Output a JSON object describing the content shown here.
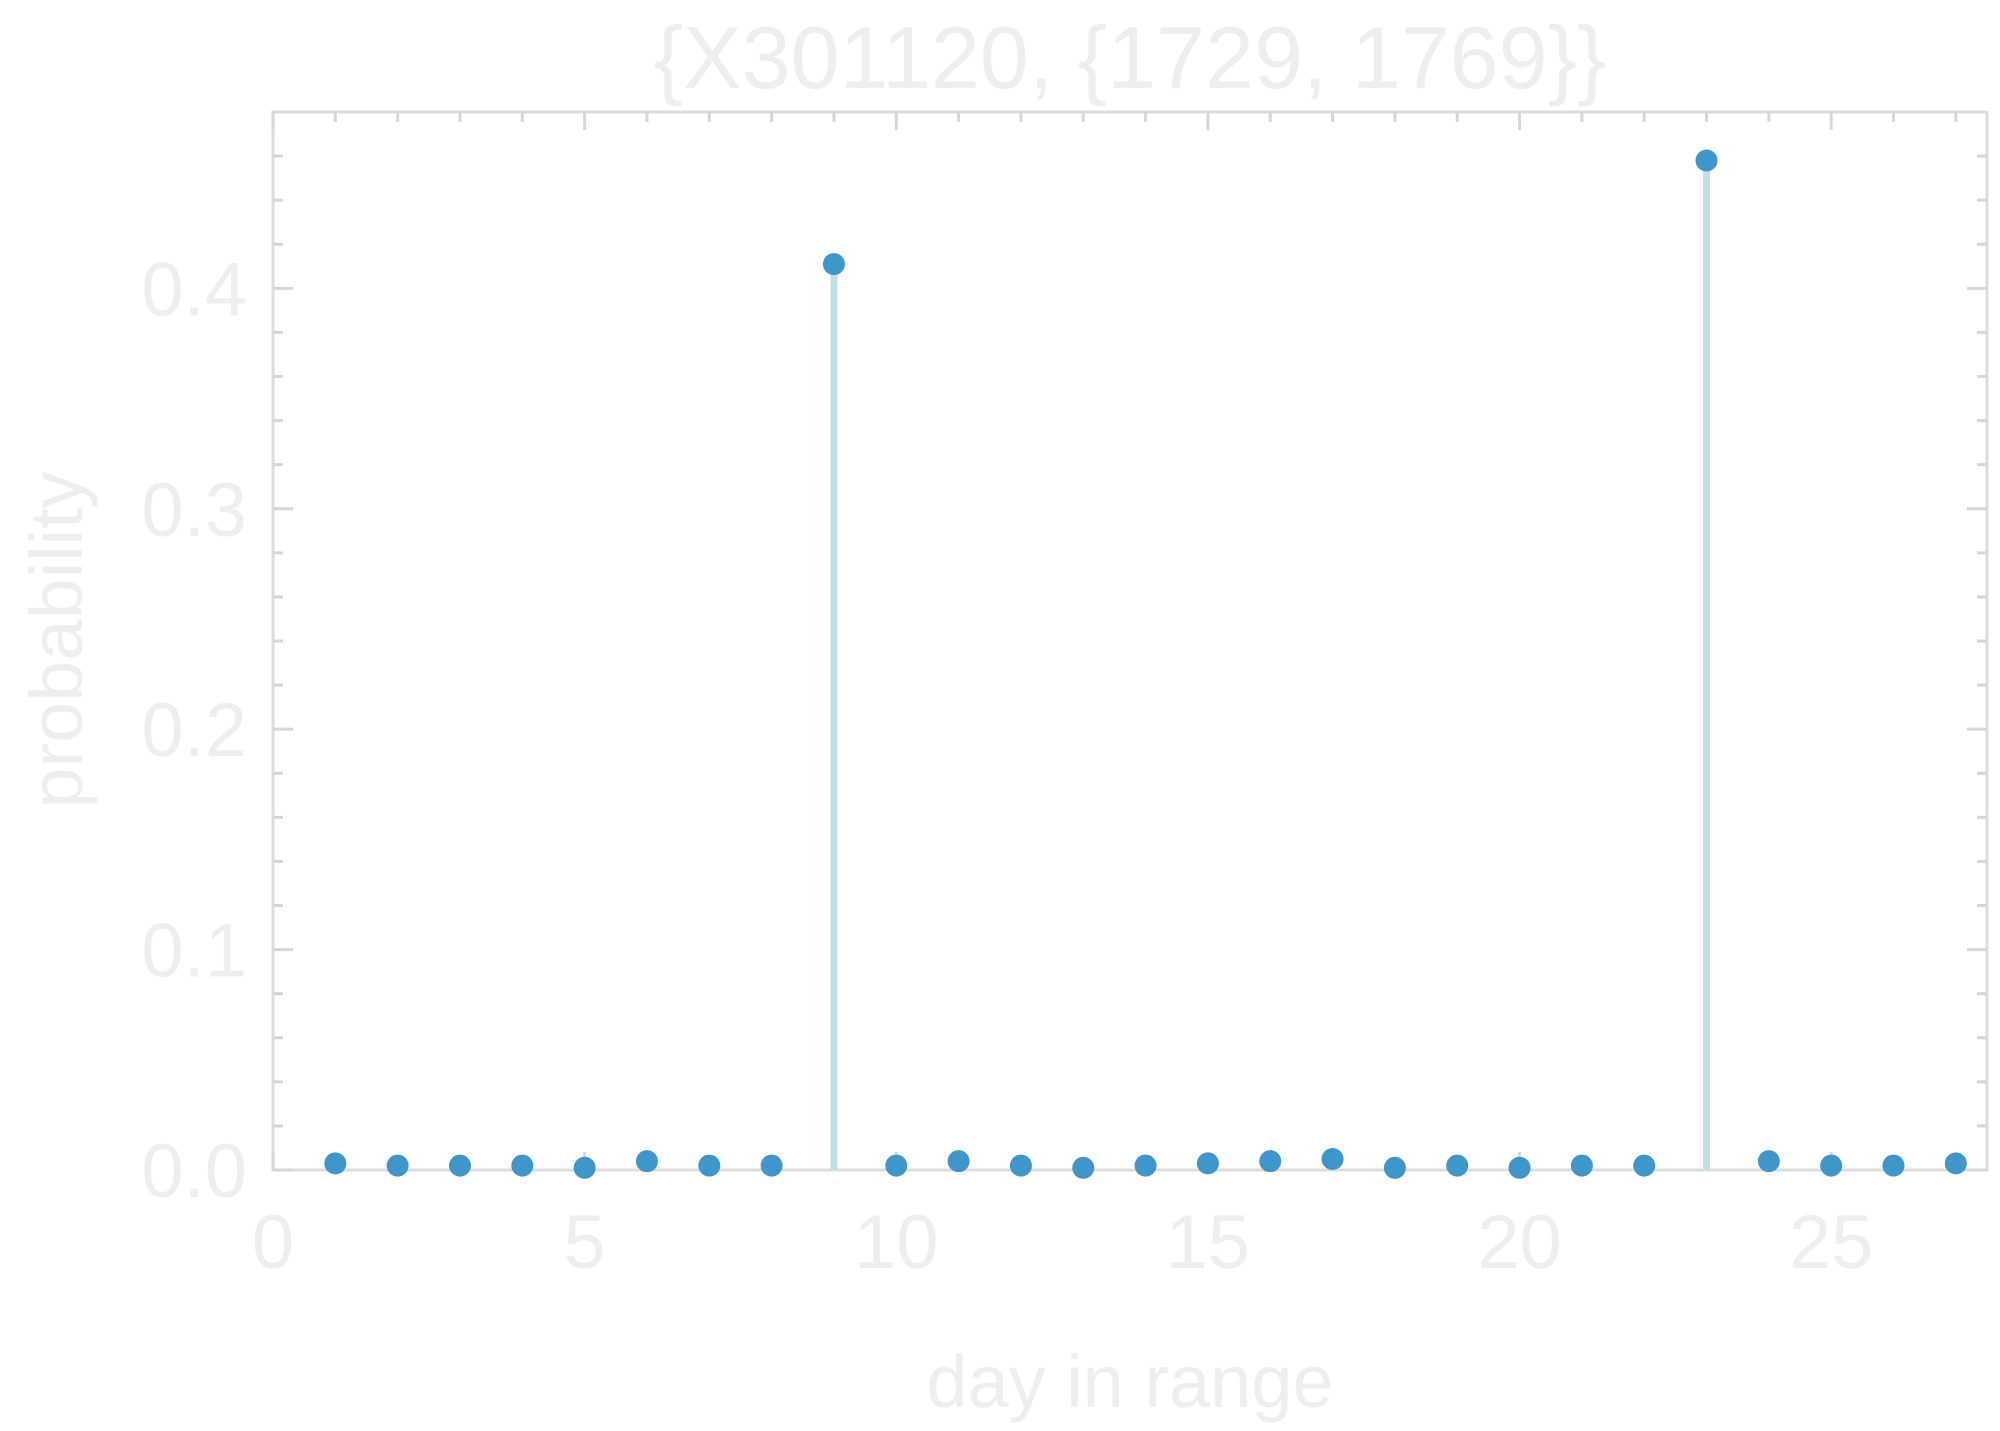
{
  "chart_data": {
    "type": "scatter",
    "title": "{X301120, {1729, 1769}}",
    "xlabel": "day in range",
    "ylabel": "probability",
    "xlim": [
      0,
      27.5
    ],
    "ylim": [
      0,
      0.48
    ],
    "xticks": [
      0,
      5,
      10,
      15,
      20,
      25
    ],
    "yticks": [
      0.0,
      0.1,
      0.2,
      0.3,
      0.4
    ],
    "xtick_labels": [
      "0",
      "5",
      "10",
      "15",
      "20",
      "25"
    ],
    "ytick_labels": [
      "0.0",
      "0.1",
      "0.2",
      "0.3",
      "0.4"
    ],
    "grid": false,
    "legend": "none",
    "colors": {
      "point": "#3f96cb",
      "stem": "#c3dde9",
      "frame": "#dcdcdc",
      "text": "#eeeeee"
    },
    "series": [
      {
        "x": [
          1,
          2,
          3,
          4,
          5,
          6,
          7,
          8,
          9,
          10,
          11,
          12,
          13,
          14,
          15,
          16,
          17,
          18,
          19,
          20,
          21,
          22,
          23,
          24,
          25,
          26,
          27
        ],
        "values": [
          0.003,
          0.002,
          0.002,
          0.002,
          0.001,
          0.004,
          0.002,
          0.002,
          0.411,
          0.002,
          0.004,
          0.002,
          0.001,
          0.002,
          0.003,
          0.004,
          0.005,
          0.001,
          0.002,
          0.001,
          0.002,
          0.002,
          0.458,
          0.004,
          0.002,
          0.002,
          0.003
        ]
      }
    ]
  }
}
